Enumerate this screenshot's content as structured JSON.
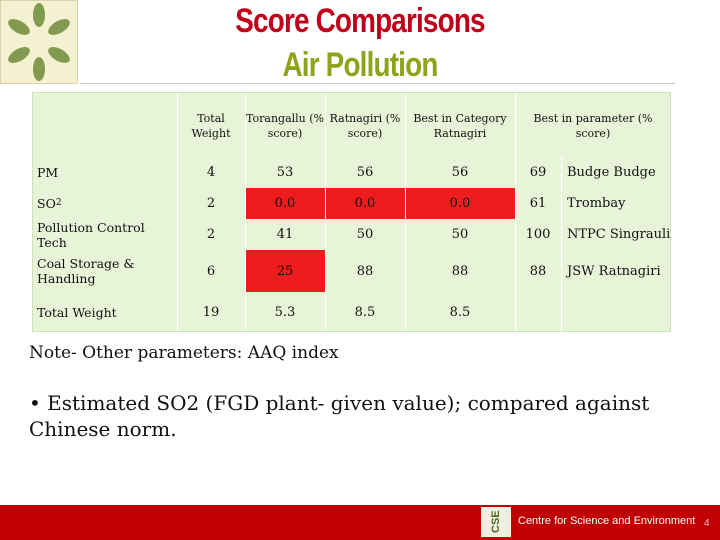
{
  "title": {
    "line1": "Score Comparisons",
    "line2": "Air Pollution"
  },
  "table": {
    "headers": [
      "",
      "Total Weight",
      "Torangallu (% score)",
      "Ratnagiri (% score)",
      "Best in Category Ratnagiri",
      "Best in parameter (% score)",
      ""
    ],
    "rows": [
      {
        "name": "PM",
        "cells": [
          "4",
          "53",
          "56",
          "56",
          "69",
          "Budge Budge"
        ]
      },
      {
        "name_main": "SO",
        "name_sub": "2",
        "cells": [
          "2",
          "0.0",
          "0.0",
          "0.0",
          "61",
          "Trombay"
        ]
      },
      {
        "name": "Pollution Control Tech",
        "cells": [
          "2",
          "41",
          "50",
          "50",
          "100",
          "NTPC Singrauli"
        ]
      },
      {
        "name": "Coal Storage & Handling",
        "cells": [
          "6",
          "25",
          "88",
          "88",
          "88",
          "JSW Ratnagiri"
        ]
      },
      {
        "name": "Total Weight",
        "cells": [
          "19",
          "5.3",
          "8.5",
          "8.5",
          "",
          ""
        ]
      }
    ],
    "highlight_color": "#ee1c1c"
  },
  "note": "Note- Other parameters: AAQ index",
  "bullet": "• Estimated SO2 (FGD plant- given value); compared against Chinese norm.",
  "footer": {
    "org": "Centre for Science and Environment",
    "page": "4",
    "logo_text": "CSE"
  },
  "colors": {
    "title_red": "#c0001a",
    "title_green": "#8fa21a",
    "table_bg": "#e8f4d8",
    "footer_bg": "#c00000"
  }
}
